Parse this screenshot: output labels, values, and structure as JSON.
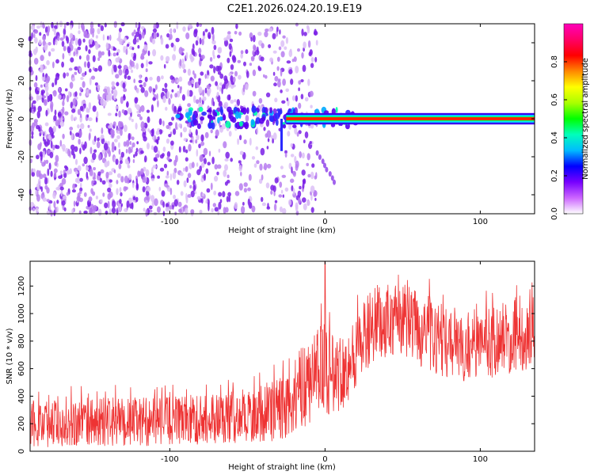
{
  "title": "C2E1.2026.024.20.19.E19",
  "chart_data": [
    {
      "type": "heatmap",
      "xlabel": "Height of straight line (km)",
      "ylabel": "Frequency (Hz)",
      "xlim": [
        -190,
        135
      ],
      "ylim": [
        -50,
        50
      ],
      "xticks": [
        -100,
        0,
        100
      ],
      "yticks": [
        -40,
        -20,
        0,
        20,
        40
      ],
      "colorbar": {
        "label": "Normalized spectral amplitude",
        "range": [
          0,
          1
        ],
        "ticks": [
          "0.0",
          "0.2",
          "0.4",
          "0.6",
          "0.8"
        ],
        "colors": [
          "#ffffff",
          "#cc66ff",
          "#7700ff",
          "#0000ff",
          "#00bbff",
          "#00ffbb",
          "#00ff00",
          "#aaff00",
          "#ffff00",
          "#ff8800",
          "#ff0000",
          "#ff0066",
          "#ff00bb"
        ]
      },
      "carrier": {
        "frequency_hz": 0,
        "start_km": -25,
        "end_km": 135
      },
      "noise_region_km": [
        -190,
        -15
      ]
    },
    {
      "type": "line",
      "color": "#ee3333",
      "xlabel": "Height of straight line (km)",
      "ylabel": "SNR (10 * v/v)",
      "xlim": [
        -190,
        135
      ],
      "ylim": [
        0,
        1380
      ],
      "xticks": [
        -100,
        0,
        100
      ],
      "yticks": [
        0,
        200,
        400,
        600,
        800,
        1000,
        1200
      ],
      "profile": [
        {
          "x": -190,
          "low": 30,
          "high": 380
        },
        {
          "x": -150,
          "low": 30,
          "high": 390
        },
        {
          "x": -100,
          "low": 40,
          "high": 400
        },
        {
          "x": -70,
          "low": 50,
          "high": 430
        },
        {
          "x": -45,
          "low": 60,
          "high": 470
        },
        {
          "x": -25,
          "low": 80,
          "high": 560
        },
        {
          "x": -15,
          "low": 150,
          "high": 760
        },
        {
          "x": -5,
          "low": 250,
          "high": 950
        },
        {
          "x": 5,
          "low": 250,
          "high": 850
        },
        {
          "x": 15,
          "low": 350,
          "high": 900
        },
        {
          "x": 30,
          "low": 650,
          "high": 1180
        },
        {
          "x": 50,
          "low": 680,
          "high": 1230
        },
        {
          "x": 70,
          "low": 560,
          "high": 1120
        },
        {
          "x": 90,
          "low": 500,
          "high": 960
        },
        {
          "x": 110,
          "low": 540,
          "high": 1080
        },
        {
          "x": 135,
          "low": 600,
          "high": 1120
        }
      ],
      "peak": {
        "x": 0,
        "value": 1380
      }
    }
  ]
}
